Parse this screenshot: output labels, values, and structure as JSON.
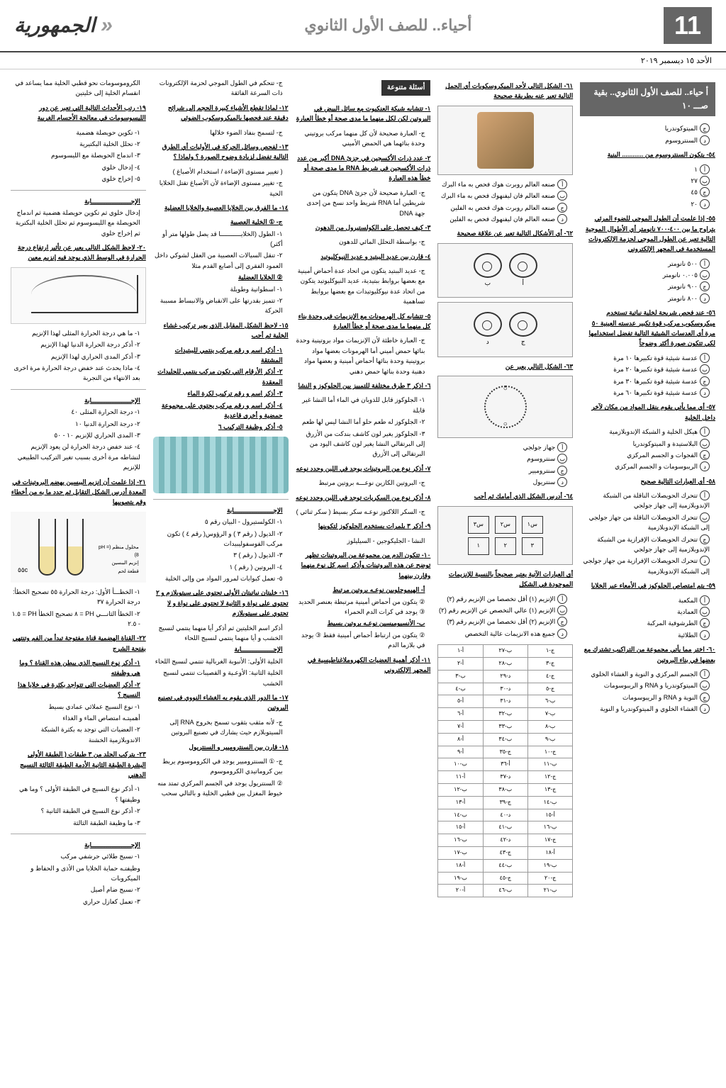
{
  "header": {
    "pageNumber": "11",
    "subjectTitle": "أحياء.. للصف الأول الثانوي",
    "logo": "الجمهورية",
    "date": "الأحد ١٥ ديسمبر ٢٠١٩"
  },
  "continuation": "أ حياء.. للصف الأول الثانوي.. بقية صـــ ١٠",
  "col1": {
    "opts1": [
      "الميتوكوندريا",
      "السنتروسوم"
    ],
    "q_blank": "٥٤- يتكون السنتروسوم من ............ البنية",
    "opts2": [
      "١",
      "٢٧",
      "٤٥",
      "٢٠"
    ],
    "q55": "٥٥- إذا علمت أن الطول الموجي للضوء المرئي يتراوح ما بين ٤٠٠-٧٠٠ نانومتر أي الأطوال الموجية التالية تعبر عن الطول الموجي لحزمة الإلكترونات المستخدمة في المجهر الإلكتروني",
    "opts3": [
      "٥٠٠ نانومتر",
      "٠.٠٠٥ نانومتر",
      "٩٠٠ نانومتر",
      "٨٠٠ نانومتر"
    ],
    "q56": "٥٦- عند فحص شريحة لخلية نباتية تستخدم ميكروسكوب مركب قوة تكبير عدسته العينية ٥٠ مرة أي العدسات الشيئية التالية تفضل استخدامها لكي تتكون صورة أكثر وضوحاً",
    "opts4": [
      "عدسة شيئية قوة تكبيرها ١٠ مرة",
      "عدسة شيئية قوة تكبيرها ٢٠ مرة",
      "عدسة شيئية قوة تكبيرها ٣٠ مرة",
      "عدسة شيئية قوة تكبيرها ٦٠ مرة"
    ],
    "q57": "٥٧- أي مما يأتي يقوم بنقل المواد من مكان لآخر داخل الخلية",
    "opts5": [
      "هيكل الخلية و الشبكة الإندوبلازمية",
      "البلاستيدة و الميتوكوندريا",
      "الفجوات و الجسم المركزي",
      "الريبوسومات و الجسم المركزي"
    ],
    "q58": "٥٨- أي العبارات التالية صحيح",
    "opts6": [
      "تتحرك الحويصلات الناقلة من الشبكة الإندوبلازمية إلى جهاز جولجي",
      "تتحرك الحويصلات الناقلة من جهاز جولجي إلى الشبكة الإندوبلازمية",
      "تتحرك الحويصلات الإفرازية من الشبكة الإندوبلازمية إلى جهاز جولجي",
      "تتحرك الحويصلات الإفرازية من جهاز جولجي إلى الشبكة الإندوبلازمية"
    ],
    "q59": "٥٩- يتم امتصاص الجلوكوز في الأمعاء عبر الخلايا",
    "opts7": [
      "المكعبة",
      "العمادية",
      "الطرشوفية المركبة",
      "الطلائية"
    ],
    "q60": "٦٠- اختر مما يأتي مجموعة من التراكيب تشترك مع بعضها في بناء البروتين",
    "opts8": [
      "الجسم المركزي و النوية و الغشاء الخلوي",
      "الميتوكوندريا و RNA و الريبوسومات",
      "النوية و RNA و الريبوسومات",
      "الغشاء الخلوي و الميتوكوندريا و النوية"
    ]
  },
  "col2": {
    "q61": "٦١- الشكل التالي لأحد الميكروسكوبات أي الجمل التالية تعبر عنه بطريقة صحيحة",
    "opts1": [
      "صنعه العالم روبرت هوك فحص به ماء البرك",
      "صنعه العالم فان ليفنهوك فحص به ماء البرك",
      "صنعه العالم روبرت هوك فحص به الفلين",
      "صنعه العالم فان ليفنهوك فحص به الفلين"
    ],
    "q62": "٦٢- أي الأشكال التالية تعبر عن علاقة صحيحة",
    "q63": "٦٣- الشكل التالي يعبر عن",
    "opts3": [
      "جهاز جولجي",
      "سنتروسوم",
      "سنتروميير",
      "سنتريول"
    ],
    "q64": "٦٤- أدرس الشكل الذي أمامك ثم أجب",
    "shape_labels": [
      "ناتج تفاعل",
      "ناتج تفاعل"
    ],
    "enzyme_q": "أي العبارات الآتية يعتبر صحيحاً بالنسبة للإنزيمات الموجودة في الشكل",
    "opts4": [
      "الإنزيم (١) أقل تخصصا من الإنزيم رقم (٢)",
      "الإنزيم (١) عالي التخصص عن الإنزيم رقم (٢)",
      "الإنزيم (٢) أقل تخصصا من الإنزيم رقم (٣)",
      "جميع هذه الانزيمات عالية التخصص"
    ],
    "answer_header": [
      "ج",
      "ب",
      "أ"
    ],
    "answers": [
      [
        "ج-١",
        "ب-٢٧",
        "أ-١"
      ],
      [
        "ج-٣",
        "ب-٢٨",
        "أ-٢"
      ],
      [
        "ج-٤",
        "د-٢٩",
        "ب-٣"
      ],
      [
        "ج-٥",
        "د-٣٠",
        "ب-٤"
      ],
      [
        "ب-٦",
        "د-٣١",
        "أ-٥"
      ],
      [
        "ب-٧",
        "ب-٣٢",
        "أ-٦"
      ],
      [
        "ب-٨",
        "ب-٣٣",
        "أ-٧"
      ],
      [
        "ب-٩",
        "ب-٣٤",
        "أ-٨"
      ],
      [
        "ج-١٠",
        "ج-٣٥",
        "أ-٩"
      ],
      [
        "ب-١١",
        "أ-٣٦",
        "ب-١٠"
      ],
      [
        "ج-١٢",
        "د-٣٧",
        "أ-١١"
      ],
      [
        "ج-١٣",
        "ب-٣٨",
        "ب-١٢"
      ],
      [
        "ب-١٤",
        "ج-٣٩",
        "أ-١٣"
      ],
      [
        "أ-١٥",
        "د-٤٠",
        "ب-١٤"
      ],
      [
        "ب-١٦",
        "ب-٤١",
        "أ-١٥"
      ],
      [
        "ج-١٧",
        "د-٤٢",
        "ب-١٦"
      ],
      [
        "أ-١٨",
        "ج-٤٣",
        "ب-١٧"
      ],
      [
        "ب-١٩",
        "ب-٤٤",
        "أ-١٨"
      ],
      [
        "ج-٢٠",
        "ج-٤٥",
        "ب-١٩"
      ],
      [
        "ب-٢١",
        "ب-٤٦",
        "أ-٢٠"
      ]
    ]
  },
  "col3": {
    "section_title": "أسئلة متنوعة",
    "q1": "١- تتشابه شبكة العنكبوت مع سائل البيض في البروتين لكن لكل منهما ما مدى صحة أو خطأ العبارة",
    "a1": "ج- العبارة صحيحة لأن كل منهما مركب بروتيني وحدة بنائهما هي الحمض الأميني",
    "q2": "٢- عدد ذرات الأكسجين في جزئ DNA أكبر من عدد ذرات الأكسجين في شريط RNA ما مدى صحة أو خطأ هذه العبارة",
    "a2": "ج- العبارة صحيحة لأن جزئ DNA يتكون من شريطين أما RNA شريط واحد نسخ من إحدى جهة DNA",
    "q3": "٣- كيف تحصل على الكولستيرول من الدهون",
    "a3": "ج- بواسطة التحلل المائي للدهون",
    "q4": "٤- قارن بين عديد الببتيد و عديد النيوكليوتيد",
    "a4": "ج- عديد الببتيد يتكون من اتحاد عدة أحماض أمينية مع بعضها بروابط ببتيدية، عديد النيوكليوتيد يتكون من اتحاد عدة نيوكليوتيدات مع بعضها بروابط تساهمية",
    "q5": "٥- تتشابه كل الهرمونات مع الإنزيمات في وحدة بناء كل منهما ما مدى صحة أو خطأ العبارة",
    "a5": "ج- العبارة خاطئة لأن الإنزيمات مواد بروتينية وحدة بنائها حمض أميني أما الهرمونات بعضها مواد بروتينية وحدة بنائها أحماض أمينية و بعضها مواد دهنية وحدة بنائها حمض دهني",
    "q6": "٦- اذكر ٣ طرق مختلفة للتمييز بين الجلوكوز و النشا",
    "a6_1": "١- الجلوكوز قابل للذوبان في الماء أما النشا غير قابلة",
    "a6_2": "٢- الجلوكوز له طعم حلو أما النشا ليس لها طعم",
    "a6_3": "٣- الجلوكوز يغير لون كاشف بندكت من الأزرق إلى البرتقالي النشا يغير لون كاشف اليود من البرتقالي إلى الأزرق",
    "q7": "٧- أذكر نوع من البروتينات يوجد في اللبن وحدد نوعه",
    "a7": "ج- البروتين الكازين نوعـــه بروتين مرتبط",
    "q8": "٨- أذكر نوع من السكريات توجد في اللبن وحدد نوعه",
    "a8": "ج- السكر اللاكتوز نوعـه سكر بسيط ( سكر ثنائي )",
    "q9": "٩- أذكر ٣ بلمرات يستخدم الجلوكوز لتكوينها",
    "a9": "النشا - الجليكوجين - السيليلوز",
    "q10": "١٠- تتكون الدم من مجموعة من البروتينات تظهر توضح عن هذه البروتينات وأذكر اسم كل نوع منهما وقارن بينهما",
    "a10_1": "أ- الهيموجلوبين نوعـه بروتين مرتبط",
    "a10_code": "② يتكون من أحماض أمينية مرتبطة بعنصر الحديد ③ يوجد في كرات الدم الحمراء",
    "a10_2": "ب- الأنسيوميسين نوعـه بروتين بسيط",
    "a10_code2": "② يتكون من ارتباط أحماض أمينية فقط ③ يوجد في بلازما الدم",
    "q11": "١١- أذكر أهمية العضيات الكهروملاغناطيسية في المجهر الإلكتروني"
  },
  "col4": {
    "line1": "ج- تتحكم في الطول الموجي لحزمة الإلكترونات ذات السرعة الفائقة",
    "q12": "١٢- لماذا تقطع الأشياء كبيرة الحجم إلى شرائح دقيقة عند فحصها بالميكروسكوب الضوئي",
    "a12": "ج- لتسمح بنفاذ الضوء خلالها",
    "q13": "١٣- لفحص وسائل الحركة في الأوليات أي الطرق التالية تفضل لزيادة وضوح الصورة ؟ ولماذا ؟",
    "a13_1": "( تغيير مستوى الإضاءة / استخدام الأصباغ )",
    "a13_2": "ج- تغيير مستوى الإضاءة لأن الأصباغ تقتل الخلايا الحية",
    "q14": "١٤- ما الفرق بين الخلايا العصبية والخلايا العضلية",
    "a14_1": "ج- ① الخلية العصبية",
    "a14_items": [
      "١- الطول (الخلايـــــــــــا قد يصل طولها متر أو أكثر)",
      "٢- تنقل السيالات العصبية من العقل لشوكي داخل العمود الفقري إلى أصابع القدم مثلا"
    ],
    "a14_2": "② الخلايا العضلية",
    "a14_items2": [
      "١- اسطوانية وطويلة",
      "٢- تتميز بقدرتها على الانقباض والانبساط مسببة الحركة"
    ],
    "q15": "١٥- لاحظ الشكل المقابل الذي يعبر تركيب غشاء الخلية ثم أجب",
    "q15_sub": [
      "١- أذكر اسم و رقم مركب ينتمي للببتيدات المشتقة",
      "٢- أذكر الأرقام التي تكون مركب ينتمي للجليدات المعقدة",
      "٣- أذكر اسم و رقم تركيب لكرة الماء",
      "٤- أذكر اسم و رقم مركب يحتوي على مجموعة حمضية و أخرى قاعدية",
      "٥- أذكر وظيفة التركيب ٦"
    ],
    "answer_label": "الإجـــــــــــــــــــــابة",
    "a15": [
      "١- الكولستيرول - البيان رقم ٥",
      "٢- الذيول ( رقم ٣ ) و الرؤوس( رقم ٤ ) تكون مركب الفوسفوليبيدات",
      "٣- الذيول ( رقم ) ٣",
      "٤- البروتين ( رقم ) ١",
      "٥- تعمل كبوابات لمرور المواد من وإلى الخلية"
    ],
    "q16": "١٦- خليتان نباتيتان الأولى تحتوي على سيتوبلازم و ٢ تحتوي على نواة و الثانية لا تحتوي على نواة و لا تحتوي على سيتوبلازم",
    "a16": "أذكر اسم الخليتين ثم أذكر أيا منهما ينتمي لنسيج الخشب و أيا منهما ينتمي لنسيج اللحاء",
    "answer_label2": "الإجـــــــــــــــــابة",
    "a16_items": [
      "الخلية الأولى: الأنبوبة الغربالية تنتمي لنسيج اللحاء",
      "الخلية الثانية: الأوعـية و القصيبات تنتمي لنسيج الخشب"
    ],
    "q17": "١٧- ما الدور الذي يقوم به الغشاء النووي في تصنيع البروتين",
    "a17": "ج- لأنه مثقب بثقوب تسمح بخروج RNA إلى السيتوبلازم حيث يشارك في تصنيع البروتين",
    "q18": "١٨- قارن بين السنتروميير و السنتريول",
    "a18_1": "ج- ① السنتروميير يوجد في الكروموسوم يربط بين كروماتيدي الكروموسوم",
    "a18_2": "② السنتريول يوجد في الجسم المركزي تمتد منه خيوط المغزل بين قطبي الخلية و بالتالي سحب"
  },
  "col5": {
    "line1": "الكروموسومات نحو قطبي الخلية مما يساعد في انقسام الخلية إلى خليتين",
    "q19": "١٩- رتب الأحداث التالية التي تعبر عن دور الليسوسومات في معالجة الأجسام الغريبة",
    "items19": [
      "١- تكوين حويصلة هضمية",
      "٢- تحلل الخلية البكتيرية",
      "٣- اندماج الحويصلة مع الليسوسوم",
      "٤- إدخال خلوي",
      "٥- إخراج خلوي"
    ],
    "answer_label": "الإجـــــــــــــــــــــابة",
    "a19": "إدخال خلوي ثم تكوين حويصلة هضمية ثم اندماج الحويصلة مع الليسوسوم ثم تحلل الخلية البكترية ثم إخراج خلوي",
    "q20": "٢٠- لاحظ الشكل التالي يعبر عن تأثير ارتفاع درجة الحرارة في الوسط الذي يوجد فيه إنزيم معين",
    "q20_sub": [
      "١- ما هي درجة الحرارة المثلى لهذا الإنزيم",
      "٢- أذكر درجة الحرارة الدنيا لهذا الإنزيم",
      "٣- أذكر المدى الحراري لهذا الإنزيم",
      "٤- ماذا يحدث عند خفض درجة الحرارة مرة اخرى بعد الانتهاء من التجربة"
    ],
    "answer_label2": "الإجـــــــــــــــــــــابة",
    "a20": [
      "١- درجة الحرارة المثلى ٤٠",
      "٢- درجة الحرارة الدنيا ١٠",
      "٣- المدى الحراري للإنزيم ١٠ - ٥٠",
      "٤- عند خفض درجة الحرارة لن يعود الإنزيم لنشاطه مرة أخرى بسبب تغير التركيب الطبيعي للإنزيم"
    ],
    "q21": "٢١- إذا علمت أن إنزيم الببسين يهضم البروتينات في المعدة أدرس الشكل التقابل ثم حدد ما به من أخطاء وقم بتصويبها",
    "tube_labels": [
      "محلول منظم (pH = 8)",
      "إنزيم الببسين",
      "قطعة لحم"
    ],
    "a21": [
      "١- الخطـــأ الأول: درجة الحرارة ٥٥ تصحيح الخطأ: درجة الحرارة ٣٧",
      "٢- الخطأ الثانـــي PH = ٨ تصحيح الخطأ PH = ١.٥ - ٢.٥"
    ],
    "q22": "٢٢- القناة الهضمية قناة مفتوحة تبدأ من الفم وتنتهي بفتحة الشرج",
    "q22_sub": [
      "١- أذكر نوع النسيج الذي يبطن هذه القناة ؟ وما هي وظيفته",
      "٢- أذكر العضيات التي تتواجد بكثرة في خلايا هذا النسيج ؟"
    ],
    "a22_1": "١- نوع النسيج عملائي عمادي بسيط",
    "a22_2": "أهميتـه امتصاص الماء و الغذاء",
    "a22_3": "٢- العضيات التي توجد به بكثرة الشبكة الاندوبلازمية الخشنة",
    "q23": "٢٣- يتركب الجلد من ٣ طبقات ( الطبقة الأولى البشرة الطبقة الثانية الأدمة الطبقة الثالثة النسيج الدهني",
    "q23_sub": [
      "١- أذكر نوع النسيج في الطبقة الأولى ؟ وما هي وظيفتها ؟",
      "٢- أذكر نوع النسيج في الطبقة الثانية ؟",
      "٣- ما وظيفة الطبقة الثالثة"
    ],
    "answer_label3": "الإجـــــــــــــــــــــابة",
    "a23_1": "١- نسيج طلائي حرشفي مركب",
    "a23_2": "وظيفتـه حماية الخلايا من الأذى و الحفاظ و الميكروبات",
    "a23_3": "٢- نسيج ضام أصيل",
    "a23_4": "٣- تعمل كعازل حراري"
  }
}
